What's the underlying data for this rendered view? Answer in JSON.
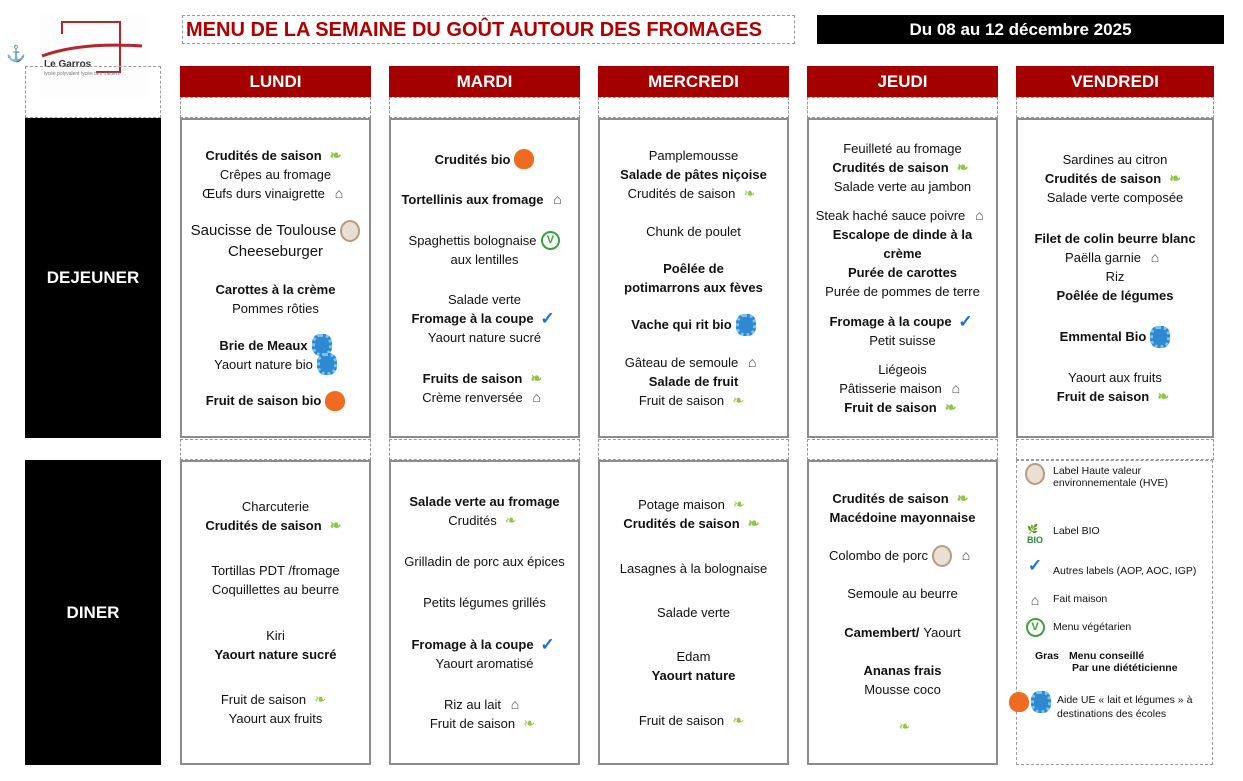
{
  "header": {
    "title": "MENU DE LA SEMAINE DU GOÛT AUTOUR DES FROMAGES",
    "date": "Du 08 au 12 décembre 2025",
    "logo_name": "Le Garros",
    "logo_sub": "lycée polyvalent lycée des métiers"
  },
  "days": [
    "LUNDI",
    "MARDI",
    "MERCREDI",
    "JEUDI",
    "VENDREDI"
  ],
  "meals": {
    "lunch": "DEJEUNER",
    "dinner": "DINER"
  },
  "lunch": [
    [
      [
        {
          "t": "Crudités de saison",
          "b": true,
          "i": "bio"
        },
        {
          "t": "Crêpes au fromage"
        },
        {
          "t": "Œufs durs vinaigrette",
          "i": "maison"
        }
      ],
      [
        {
          "t": "Saucisse de Toulouse",
          "big": true,
          "i": "hve"
        },
        {
          "t": "Cheeseburger",
          "big": true
        }
      ],
      [
        {
          "t": "Carottes à la crème",
          "b": true
        },
        {
          "t": "Pommes rôties"
        }
      ],
      [
        {
          "t": "Brie de Meaux",
          "b": true,
          "i": "uem"
        },
        {
          "t": "Yaourt nature bio",
          "i": "uem"
        }
      ],
      [
        {
          "t": "Fruit de saison bio",
          "b": true,
          "i": "uef"
        }
      ]
    ],
    [
      [
        {
          "t": "Crudités bio",
          "b": true,
          "i": "uef"
        }
      ],
      [
        {
          "t": "Tortellinis aux fromage",
          "b": true,
          "i": "maison"
        }
      ],
      [
        {
          "t": "Spaghettis bolognaise",
          "i": "veg"
        },
        {
          "t": "aux lentilles"
        }
      ],
      [
        {
          "t": "Salade verte"
        },
        {
          "t": "Fromage à la coupe",
          "b": true,
          "i": "check"
        },
        {
          "t": "Yaourt nature sucré"
        }
      ],
      [
        {
          "t": "Fruits de saison",
          "b": true,
          "i": "bio"
        },
        {
          "t": "Crème renversée",
          "i": "maison"
        }
      ]
    ],
    [
      [
        {
          "t": "Pamplemousse"
        },
        {
          "t": "Salade de pâtes niçoise",
          "b": true
        },
        {
          "t": "Crudités de saison",
          "i": "bio"
        }
      ],
      [
        {
          "t": "Chunk de poulet"
        }
      ],
      [
        {
          "t": "Poêlée de",
          "b": true
        },
        {
          "t": "potimarrons aux fèves",
          "b": true
        }
      ],
      [
        {
          "t": "Vache qui rit bio",
          "b": true,
          "i": "uem"
        }
      ],
      [
        {
          "t": "Gâteau de semoule",
          "i": "maison"
        },
        {
          "t": "Salade de fruit",
          "b": true
        },
        {
          "t": "Fruit de saison",
          "i": "bio"
        }
      ]
    ],
    [
      [
        {
          "t": "Feuilleté au fromage"
        },
        {
          "t": "Crudités de saison",
          "b": true,
          "i": "bio"
        },
        {
          "t": "Salade verte au jambon"
        }
      ],
      [
        {
          "t": "Steak haché sauce poivre",
          "i": "maison"
        },
        {
          "t": "Escalope de dinde à la",
          "b": true
        },
        {
          "t": "crème",
          "b": true
        },
        {
          "t": "Purée de carottes",
          "b": true
        },
        {
          "t": "Purée de pommes de terre"
        }
      ],
      [
        {
          "t": "Fromage à la coupe",
          "b": true,
          "i": "check"
        },
        {
          "t": "Petit suisse"
        }
      ],
      [
        {
          "t": "Liégeois"
        },
        {
          "t": "Pâtisserie maison",
          "i": "maison"
        },
        {
          "t": "Fruit de saison",
          "b": true,
          "i": "bio"
        }
      ]
    ],
    [
      [
        {
          "t": "Sardines au citron"
        },
        {
          "t": "Crudités de saison",
          "b": true,
          "i": "bio"
        },
        {
          "t": "Salade verte composée"
        }
      ],
      [
        {
          "t": "Filet de colin beurre blanc",
          "b": true
        },
        {
          "t": "Paëlla garnie",
          "i": "maison"
        },
        {
          "t": "Riz"
        },
        {
          "t": "Poêlée de légumes",
          "b": true
        }
      ],
      [
        {
          "t": "Emmental Bio",
          "b": true,
          "i": "uem"
        }
      ],
      [
        {
          "t": "Yaourt aux fruits"
        },
        {
          "t": "Fruit de saison",
          "b": true,
          "i": "bio"
        }
      ]
    ]
  ],
  "dinner": [
    [
      [
        {
          "t": "Charcuterie"
        },
        {
          "t": "Crudités de saison",
          "b": true,
          "i": "bio"
        }
      ],
      [
        {
          "t": "Tortillas PDT /fromage"
        },
        {
          "t": "Coquillettes au beurre"
        }
      ],
      [
        {
          "t": "Kiri"
        },
        {
          "t": "Yaourt nature sucré",
          "b": true
        }
      ],
      [
        {
          "t": "Fruit de saison",
          "i": "bio"
        },
        {
          "t": "Yaourt aux fruits"
        }
      ]
    ],
    [
      [
        {
          "t": "Salade verte au fromage",
          "b": true
        },
        {
          "t": "Crudités",
          "i": "bio"
        }
      ],
      [
        {
          "t": "Grilladin de porc aux épices"
        }
      ],
      [
        {
          "t": "Petits légumes grillés"
        }
      ],
      [
        {
          "t": "Fromage à la coupe",
          "b": true,
          "i": "check"
        },
        {
          "t": "Yaourt aromatisé"
        }
      ],
      [
        {
          "t": "Riz au lait",
          "i": "maison"
        },
        {
          "t": "Fruit de saison",
          "i": "bio"
        }
      ]
    ],
    [
      [
        {
          "t": "Potage maison",
          "i": "bio"
        },
        {
          "t": "Crudités de saison",
          "b": true,
          "i": "bio"
        }
      ],
      [
        {
          "t": "Lasagnes à la bolognaise"
        }
      ],
      [
        {
          "t": "Salade verte"
        }
      ],
      [
        {
          "t": "Edam"
        },
        {
          "t": "Yaourt nature",
          "b": true
        }
      ],
      [
        {
          "t": "Fruit de saison",
          "i": "bio"
        }
      ]
    ],
    [
      [
        {
          "t": "Crudités de saison",
          "b": true,
          "i": "bio"
        },
        {
          "t": "Macédoine mayonnaise",
          "b": true
        }
      ],
      [
        {
          "t": "Colombo de porc",
          "i": "hve",
          "i2": "maison"
        }
      ],
      [
        {
          "t": "Semoule au beurre"
        }
      ],
      [
        {
          "t": "Camembert/",
          "b": true,
          "extra": "Yaourt"
        }
      ],
      [
        {
          "t": "Ananas frais",
          "b": true
        },
        {
          "t": "Mousse coco"
        }
      ],
      [
        {
          "t": "",
          "i": "bio"
        }
      ]
    ]
  ],
  "legend": {
    "hve": "Label Haute valeur environnementale (HVE)",
    "bio": "Label BIO",
    "check": "Autres labels (AOP, AOC, IGP)",
    "maison": "Fait maison",
    "veg": "Menu végétarien",
    "gras": "Gras",
    "gras_desc1": "Menu conseillé",
    "gras_desc2": "Par une diététicienne",
    "ue": "Aide UE « lait et légumes » à destinations des écoles"
  },
  "icons": {
    "bio": "leaf-icon",
    "maison": "fait-maison-icon",
    "check": "checkmark-icon",
    "veg": "vegetarian-icon",
    "hve": "hve-label-icon",
    "uef": "ue-fruit-icon",
    "uem": "ue-milk-icon"
  }
}
